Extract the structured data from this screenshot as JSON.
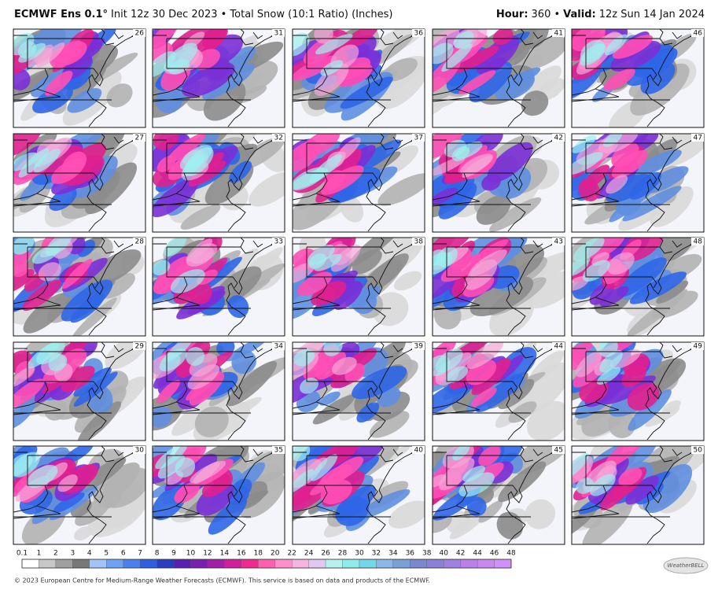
{
  "header": {
    "model": "ECMWF Ens 0.1°",
    "run": "Init 12z 30 Dec 2023 • Total Snow (10:1 Ratio) (Inches)",
    "hour_label": "Hour:",
    "hour_value": "360 •",
    "valid_label": "Valid:",
    "valid_value": "12z Sun 14 Jan 2024"
  },
  "panels": [
    {
      "member": 26
    },
    {
      "member": 31
    },
    {
      "member": 36
    },
    {
      "member": 41
    },
    {
      "member": 46
    },
    {
      "member": 27
    },
    {
      "member": 32
    },
    {
      "member": 37
    },
    {
      "member": 42
    },
    {
      "member": 47
    },
    {
      "member": 28
    },
    {
      "member": 33
    },
    {
      "member": 38
    },
    {
      "member": 43
    },
    {
      "member": 48
    },
    {
      "member": 29
    },
    {
      "member": 34
    },
    {
      "member": 39
    },
    {
      "member": 44
    },
    {
      "member": 49
    },
    {
      "member": 30
    },
    {
      "member": 35
    },
    {
      "member": 40
    },
    {
      "member": 45
    },
    {
      "member": 50
    }
  ],
  "colorbar": {
    "labels": [
      0.1,
      1,
      2,
      3,
      4,
      5,
      6,
      7,
      8,
      9,
      10,
      12,
      14,
      16,
      18,
      20,
      22,
      24,
      26,
      28,
      30,
      32,
      34,
      36,
      38,
      40,
      42,
      44,
      46,
      48
    ]
  },
  "footer": {
    "copyright": "© 2023 European Centre for Medium-Range Weather Forecasts (ECMWF). This service is based on data and products of the ECMWF.",
    "logo": "WeatherBELL"
  }
}
